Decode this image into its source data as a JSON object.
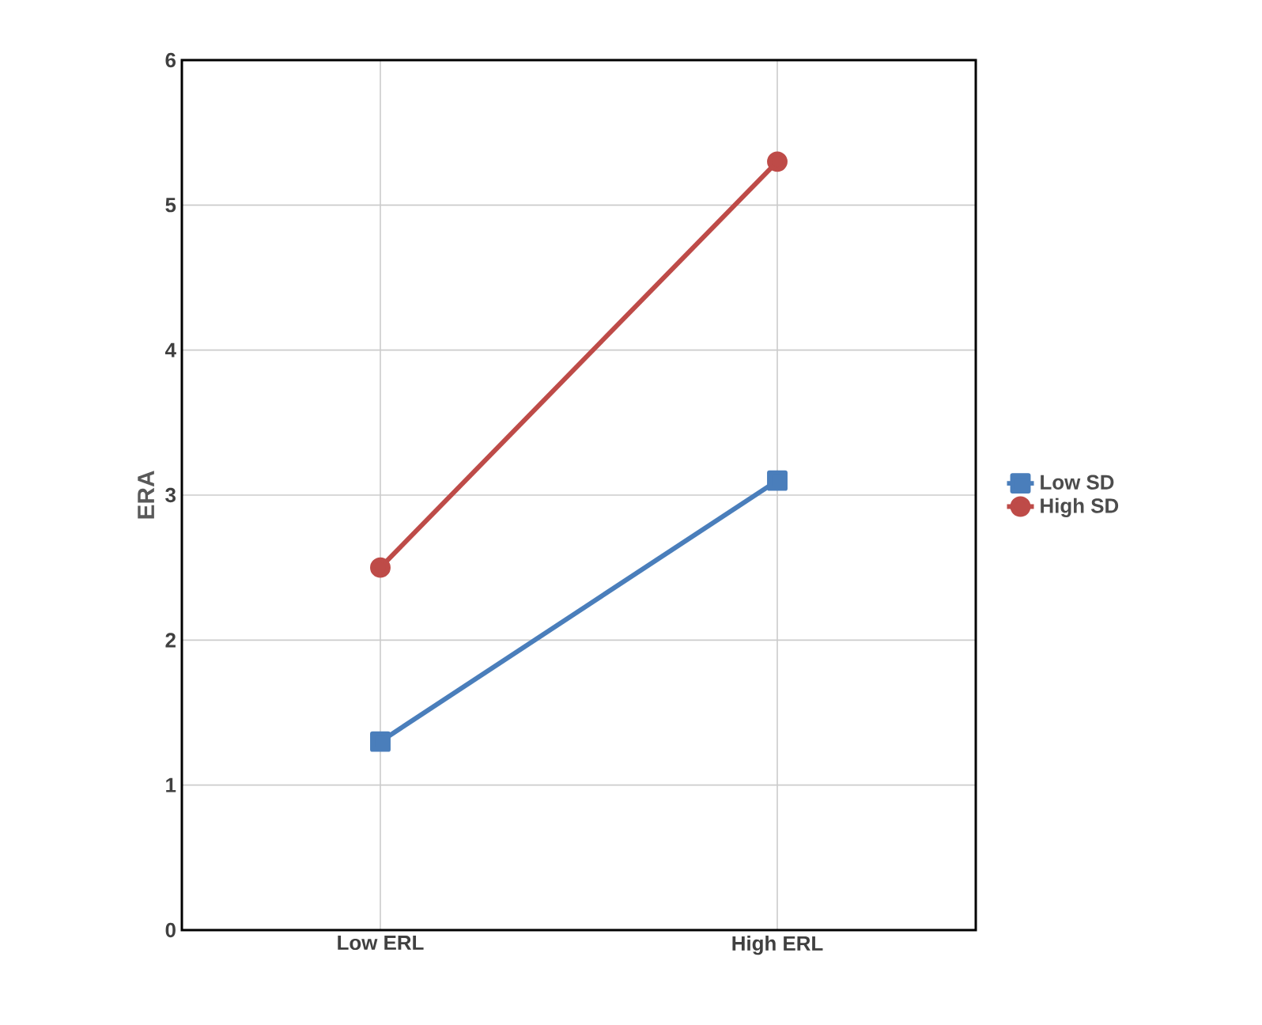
{
  "chart_data": {
    "type": "line",
    "ylabel": "ERA",
    "categories": [
      "Low ERL",
      "High ERL"
    ],
    "series": [
      {
        "name": "Low SD",
        "color": "#4a7ebb",
        "marker": "square",
        "values": [
          1.3,
          3.1
        ]
      },
      {
        "name": "High SD",
        "color": "#be4b48",
        "marker": "circle",
        "values": [
          2.5,
          5.3
        ]
      }
    ],
    "ylim": [
      0,
      6
    ],
    "yticks": [
      0,
      1,
      2,
      3,
      4,
      5,
      6
    ],
    "grid": true,
    "legend": "right",
    "line_style": "solid"
  }
}
